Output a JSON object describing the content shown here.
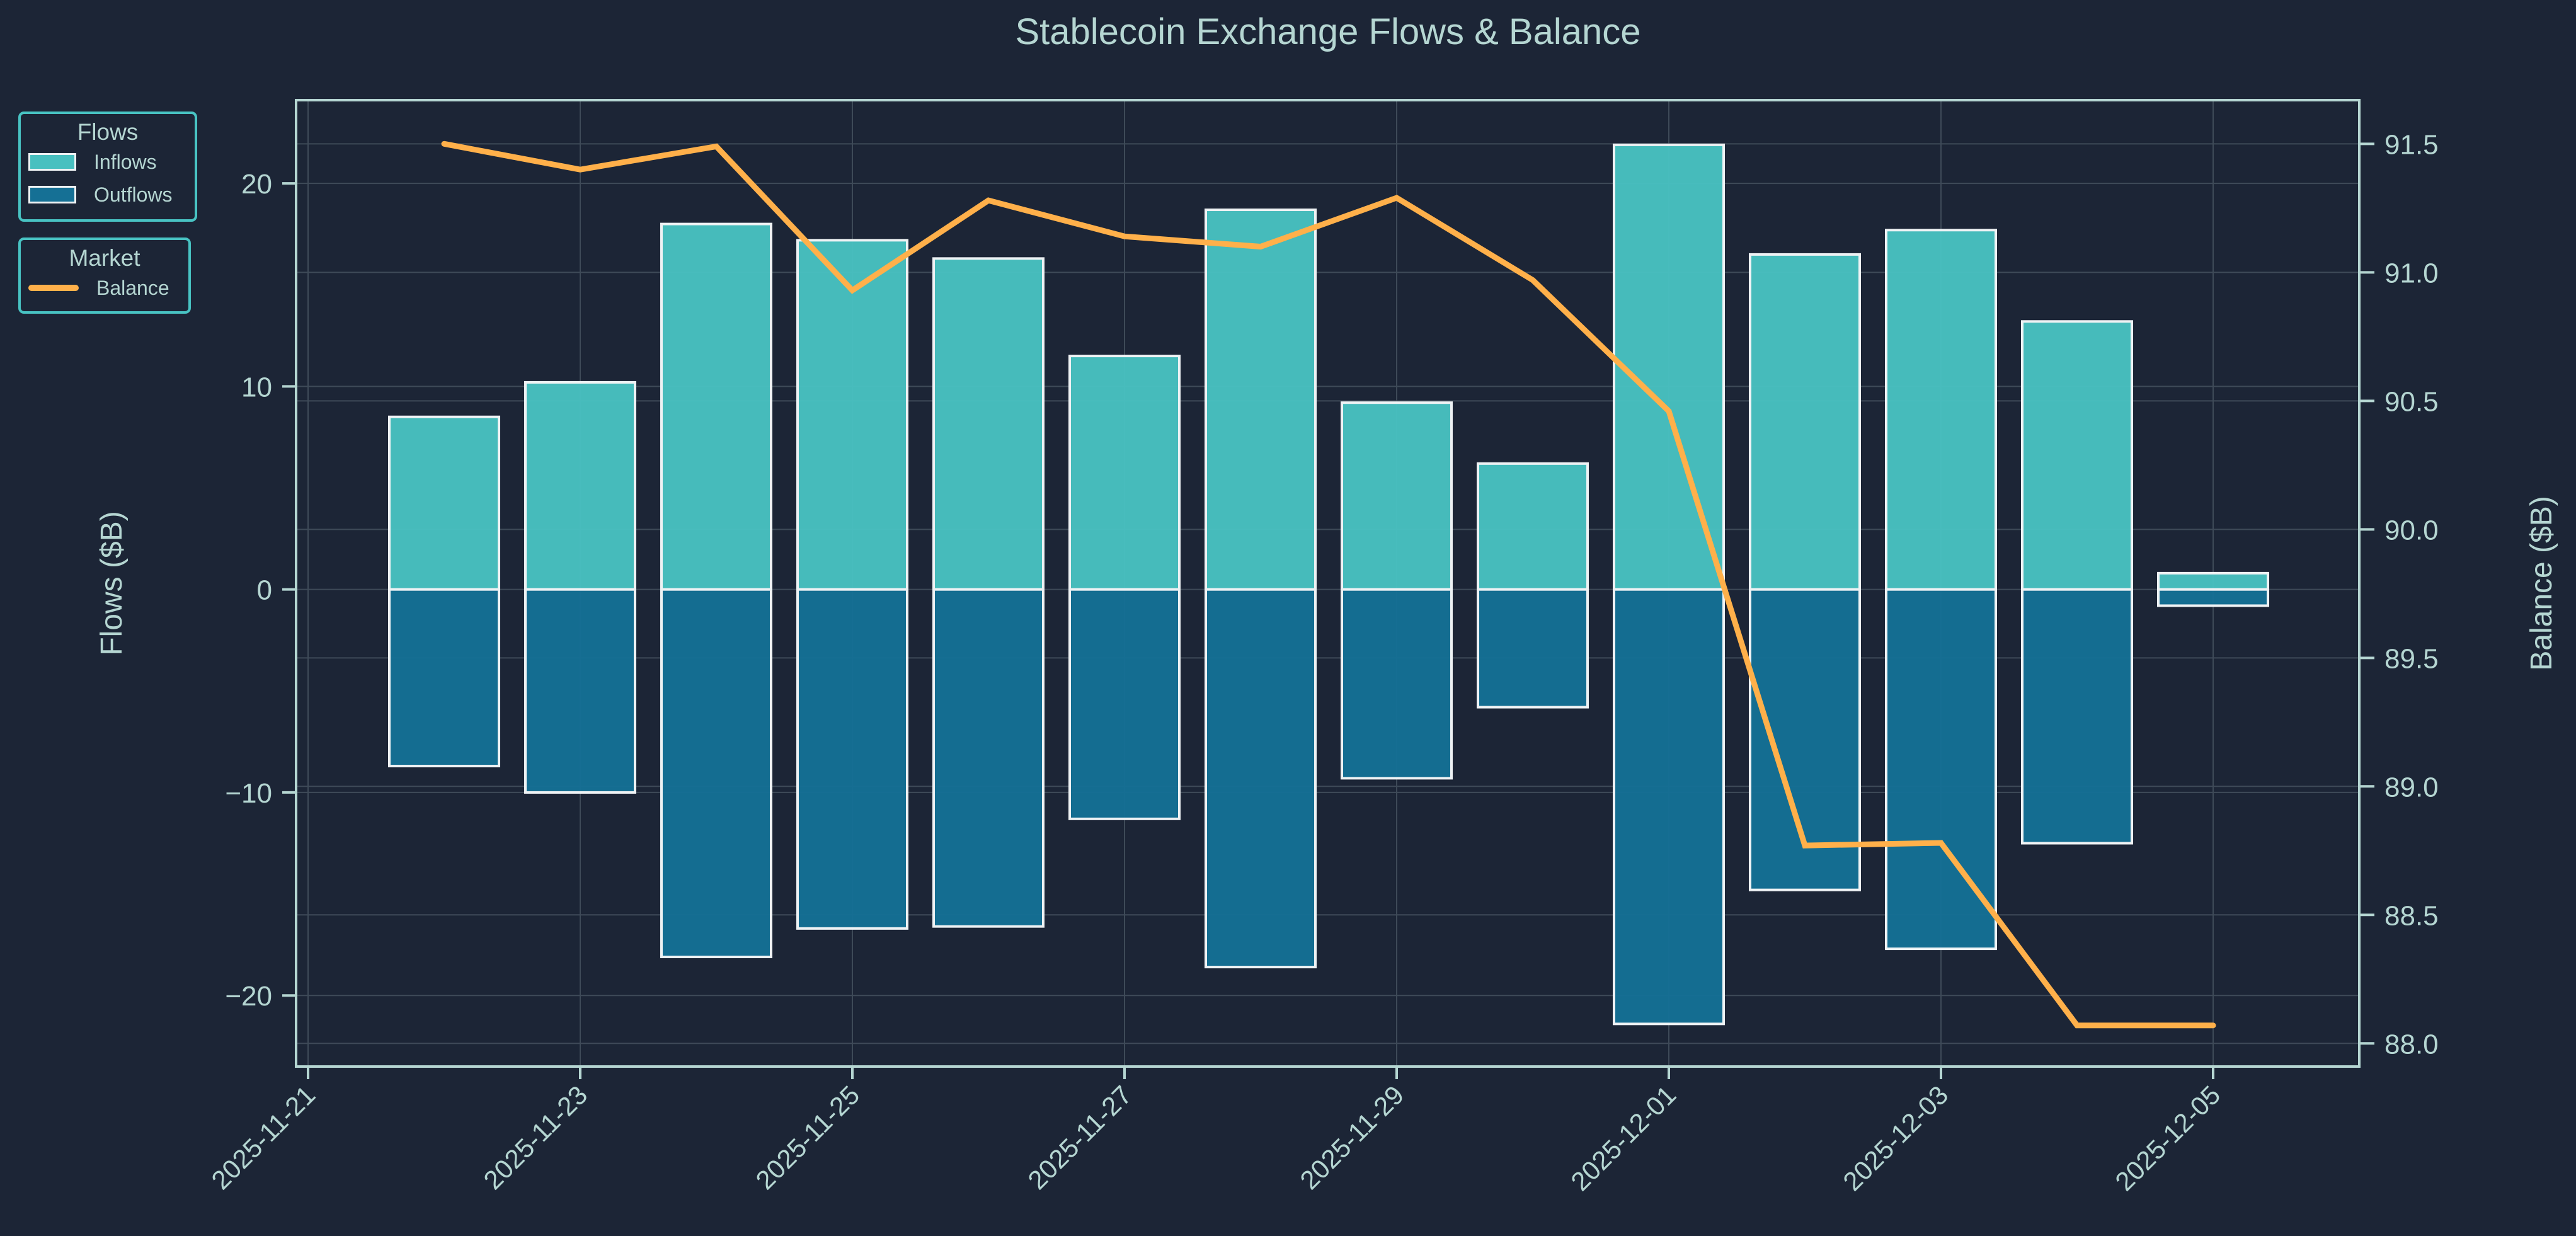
{
  "chart_data": {
    "type": "bar",
    "title": "Stablecoin Exchange Flows & Balance",
    "xlabel": "",
    "ylabel": "Flows ($B)",
    "y2label": "Balance ($B)",
    "ylim": [
      -23.5,
      24.1
    ],
    "y2lim": [
      87.91,
      91.67
    ],
    "yticks": [
      -20,
      -10,
      0,
      10,
      20
    ],
    "ytick_labels": [
      "−20",
      "−10",
      "0",
      "10",
      "20"
    ],
    "y2ticks": [
      88.0,
      88.5,
      89.0,
      89.5,
      90.0,
      90.5,
      91.0,
      91.5
    ],
    "y2tick_labels": [
      "88.0",
      "88.5",
      "89.0",
      "89.5",
      "90.0",
      "90.5",
      "91.0",
      "91.5"
    ],
    "xtick_labels": [
      "2025-11-21",
      "2025-11-23",
      "2025-11-25",
      "2025-11-27",
      "2025-11-29",
      "2025-12-01",
      "2025-12-03",
      "2025-12-05"
    ],
    "categories": [
      "2025-11-22",
      "2025-11-23",
      "2025-11-24",
      "2025-11-25",
      "2025-11-26",
      "2025-11-27",
      "2025-11-28",
      "2025-11-29",
      "2025-11-30",
      "2025-12-01",
      "2025-12-02",
      "2025-12-03",
      "2025-12-04",
      "2025-12-05"
    ],
    "series": [
      {
        "name": "Inflows",
        "type": "bar",
        "axis": "left",
        "color": "#48c0c0",
        "values": [
          8.5,
          10.2,
          18.0,
          17.2,
          16.3,
          11.5,
          18.7,
          9.2,
          6.2,
          21.9,
          16.5,
          17.7,
          13.2,
          0.8
        ]
      },
      {
        "name": "Outflows",
        "type": "bar",
        "axis": "left",
        "color": "#157095",
        "values": [
          -8.7,
          -10.0,
          -18.1,
          -16.7,
          -16.6,
          -11.3,
          -18.6,
          -9.3,
          -5.8,
          -21.4,
          -14.8,
          -17.7,
          -12.5,
          -0.8
        ]
      },
      {
        "name": "Balance",
        "type": "line",
        "axis": "right",
        "color": "#ffb04a",
        "values": [
          91.5,
          91.4,
          91.49,
          90.93,
          91.28,
          91.14,
          91.1,
          91.29,
          90.97,
          90.46,
          88.77,
          88.78,
          88.07,
          88.07
        ]
      }
    ],
    "grid": true,
    "legend": [
      {
        "title": "Flows",
        "entries": [
          "Inflows",
          "Outflows"
        ],
        "placement": "top-left"
      },
      {
        "title": "Market",
        "entries": [
          "Balance"
        ],
        "placement": "top-left"
      }
    ]
  },
  "colors": {
    "background": "#1c2536",
    "text": "#b5d6d2",
    "axis": "#b5d6d2",
    "grid": "#3e4a58",
    "bar_edge": "#eef2f4",
    "legend_border": "#48c3c3"
  }
}
